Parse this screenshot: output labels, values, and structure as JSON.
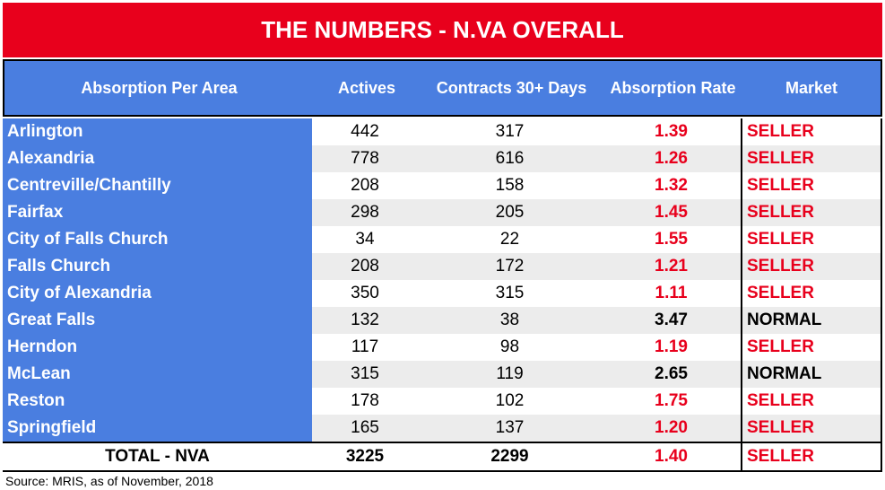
{
  "title": "THE NUMBERS - N.VA OVERALL",
  "headers": {
    "area": "Absorption Per Area",
    "actives": "Actives",
    "contracts": "Contracts 30+ Days",
    "rate": "Absorption Rate",
    "market": "Market"
  },
  "rows": [
    {
      "area": "Arlington",
      "actives": "442",
      "contracts": "317",
      "rate": "1.39",
      "market": "SELLER"
    },
    {
      "area": "Alexandria",
      "actives": "778",
      "contracts": "616",
      "rate": "1.26",
      "market": "SELLER"
    },
    {
      "area": "Centreville/Chantilly",
      "actives": "208",
      "contracts": "158",
      "rate": "1.32",
      "market": "SELLER"
    },
    {
      "area": "Fairfax",
      "actives": "298",
      "contracts": "205",
      "rate": "1.45",
      "market": "SELLER"
    },
    {
      "area": "City of Falls Church",
      "actives": "34",
      "contracts": "22",
      "rate": "1.55",
      "market": "SELLER"
    },
    {
      "area": "Falls Church",
      "actives": "208",
      "contracts": "172",
      "rate": "1.21",
      "market": "SELLER"
    },
    {
      "area": "City of Alexandria",
      "actives": "350",
      "contracts": "315",
      "rate": "1.11",
      "market": "SELLER"
    },
    {
      "area": "Great Falls",
      "actives": "132",
      "contracts": "38",
      "rate": "3.47",
      "market": "NORMAL"
    },
    {
      "area": "Herndon",
      "actives": "117",
      "contracts": "98",
      "rate": "1.19",
      "market": "SELLER"
    },
    {
      "area": "McLean",
      "actives": "315",
      "contracts": "119",
      "rate": "2.65",
      "market": "NORMAL"
    },
    {
      "area": "Reston",
      "actives": "178",
      "contracts": "102",
      "rate": "1.75",
      "market": "SELLER"
    },
    {
      "area": "Springfield",
      "actives": "165",
      "contracts": "137",
      "rate": "1.20",
      "market": "SELLER"
    }
  ],
  "total": {
    "area": "TOTAL - NVA",
    "actives": "3225",
    "contracts": "2299",
    "rate": "1.40",
    "market": "SELLER"
  },
  "source": "Source: MRIS, as of November, 2018",
  "colors": {
    "red": "#e8001c",
    "blue": "#4a7ee0"
  }
}
